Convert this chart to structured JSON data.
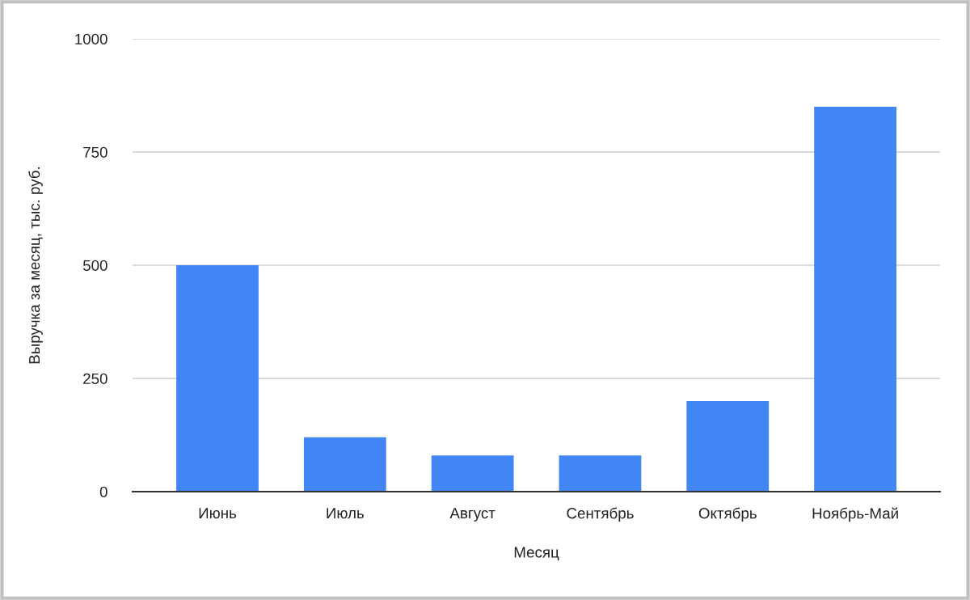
{
  "chart_data": {
    "type": "bar",
    "xlabel": "Месяц",
    "ylabel": "Выручка за месяц, тыс. руб.",
    "categories": [
      "Июнь",
      "Июль",
      "Август",
      "Сентябрь",
      "Октябрь",
      "Ноябрь-Май"
    ],
    "values": [
      500,
      120,
      80,
      80,
      200,
      850
    ],
    "color": "#4285f4",
    "ylim": [
      0,
      1000
    ],
    "yticks": [
      0,
      250,
      500,
      750,
      1000
    ],
    "grid": "y",
    "legend": false
  }
}
